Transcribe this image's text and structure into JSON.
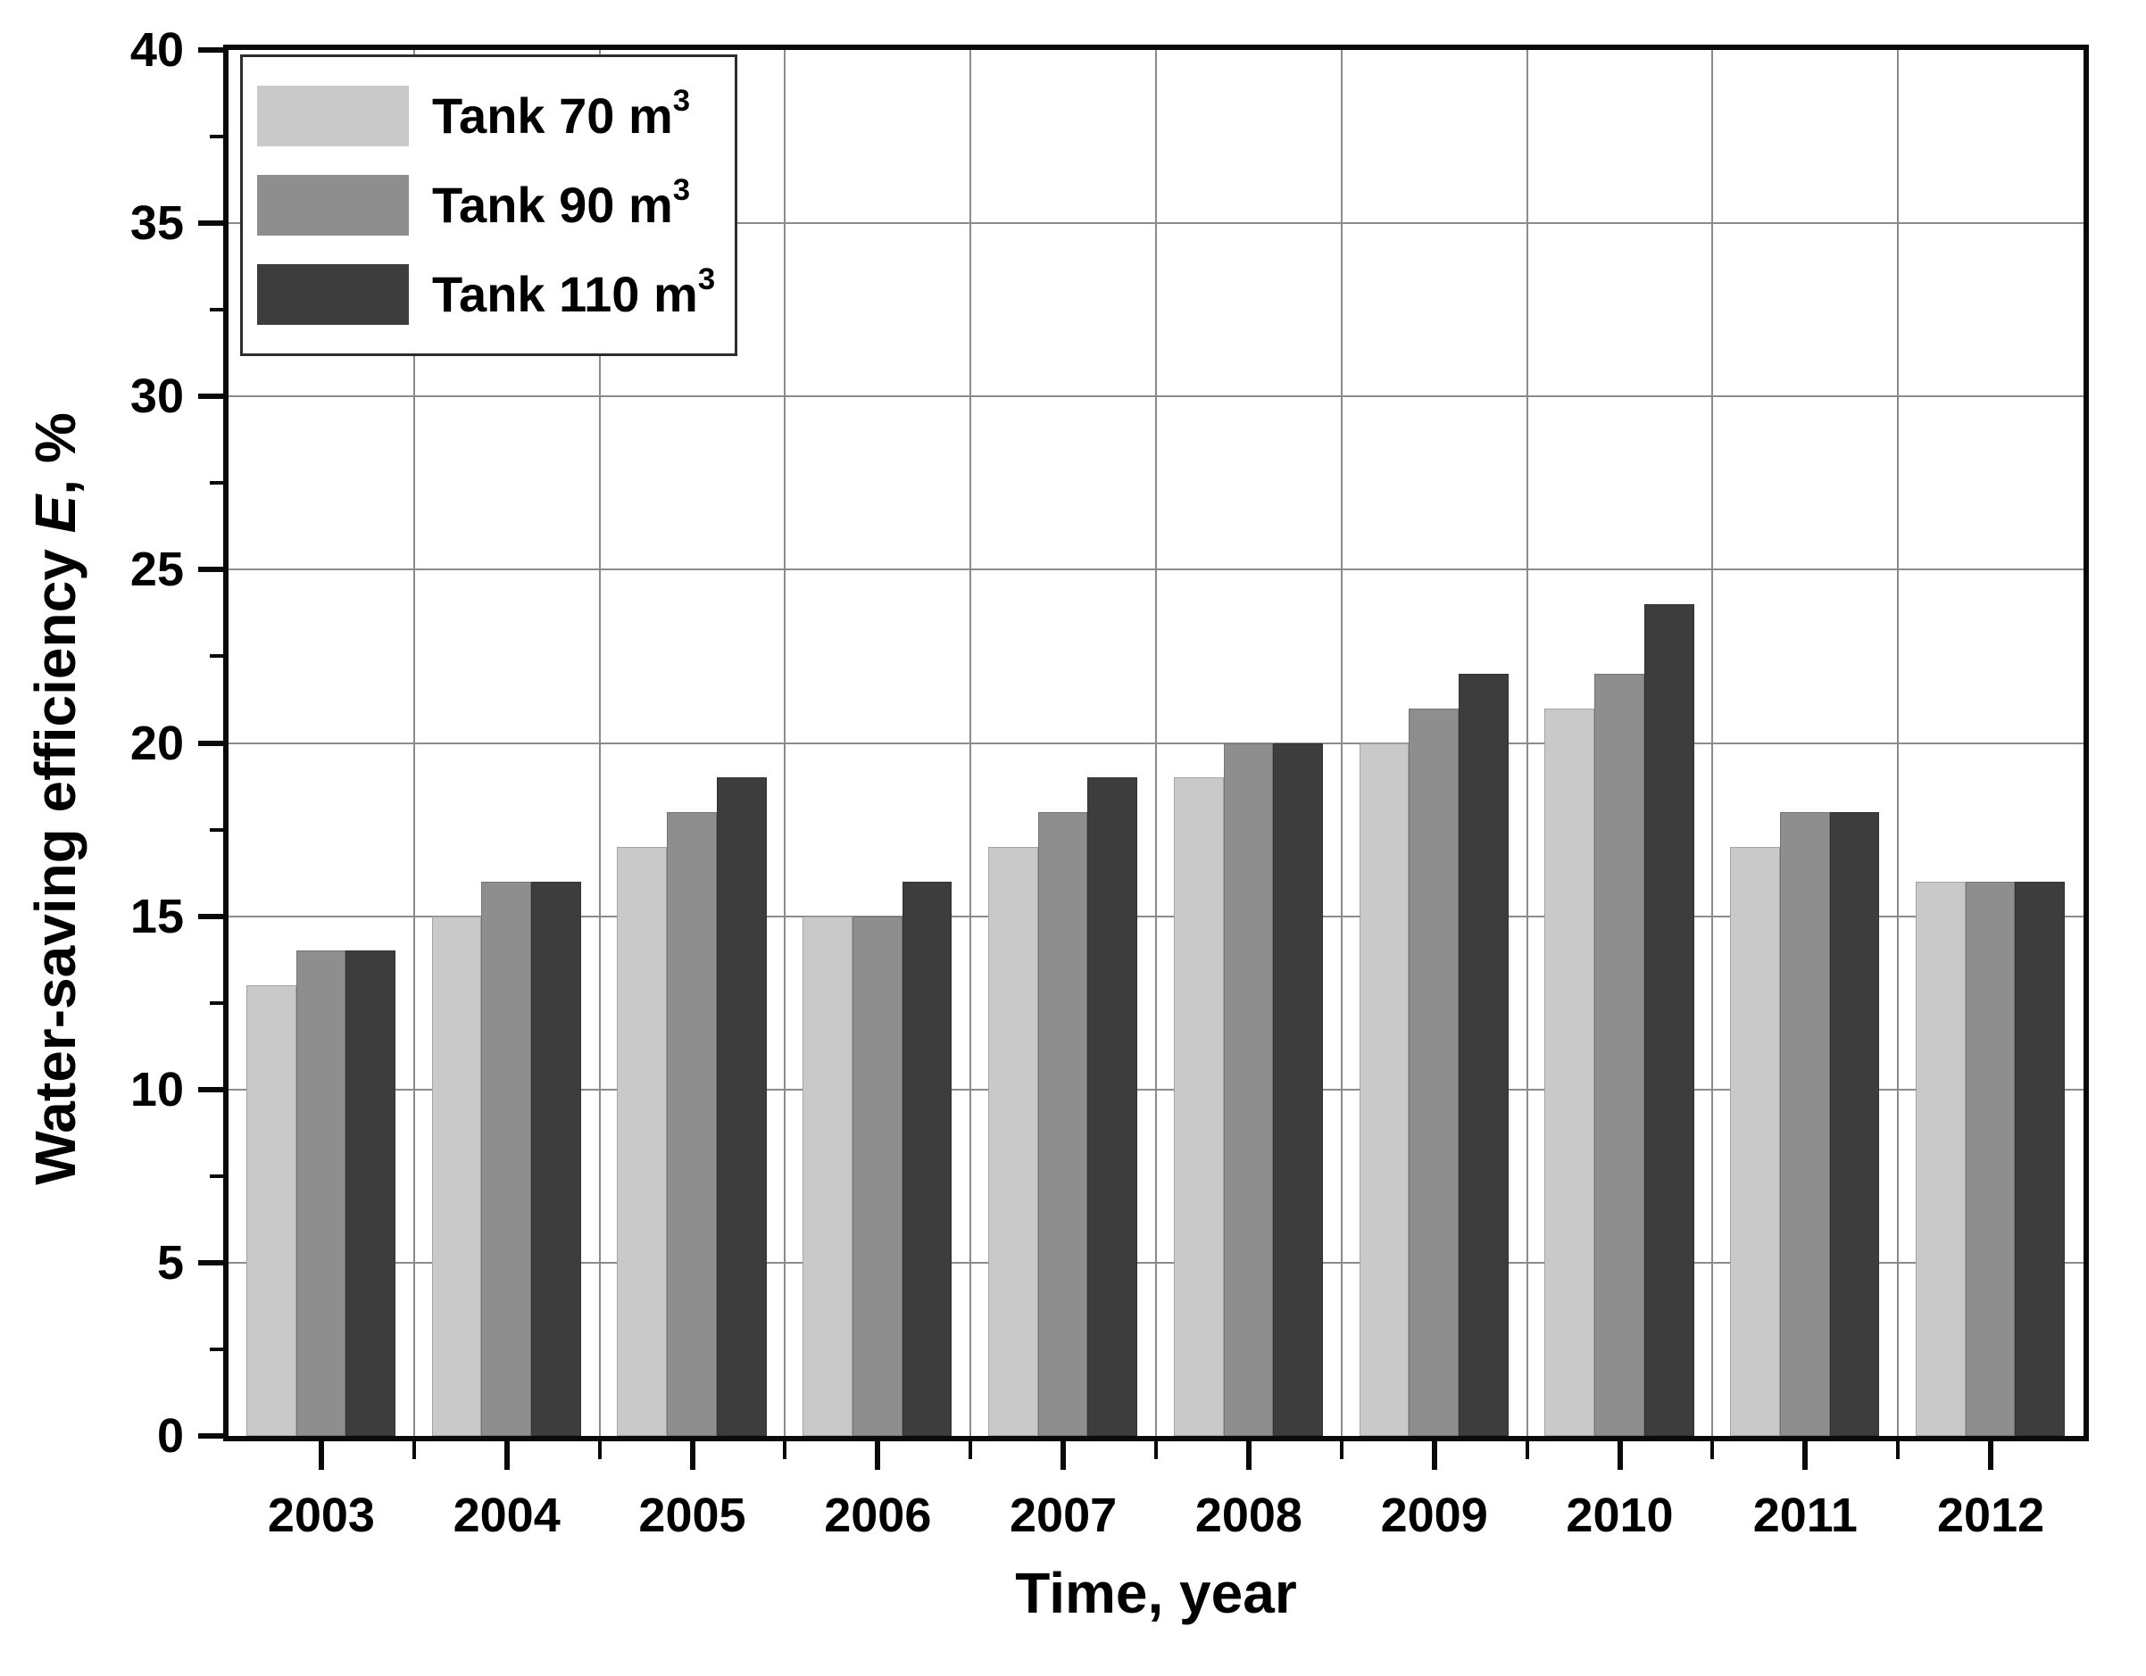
{
  "figure": {
    "background": "#ffffff"
  },
  "axes": {
    "y": {
      "title_prefix": "Water-saving efficiency ",
      "title_italic": "E",
      "title_suffix": ", %",
      "min": 0,
      "max": 40,
      "major_ticks": [
        0,
        5,
        10,
        15,
        20,
        25,
        30,
        35,
        40
      ],
      "minor_ticks": [
        2.5,
        7.5,
        12.5,
        17.5,
        22.5,
        27.5,
        32.5,
        37.5
      ]
    },
    "x": {
      "title": "Time, year"
    }
  },
  "legend": {
    "items": [
      {
        "label_base": "Tank 70 m",
        "sup": "3",
        "color": "#c9c9c9"
      },
      {
        "label_base": "Tank 90 m",
        "sup": "3",
        "color": "#8e8e8e"
      },
      {
        "label_base": "Tank 110 m",
        "sup": "3",
        "color": "#3d3d3d"
      }
    ]
  },
  "chart_data": {
    "type": "bar",
    "title": "",
    "categories": [
      "2003",
      "2004",
      "2005",
      "2006",
      "2007",
      "2008",
      "2009",
      "2010",
      "2011",
      "2012"
    ],
    "series": [
      {
        "name": "Tank 70 m³",
        "color": "#c9c9c9",
        "values": [
          13,
          15,
          17,
          15,
          17,
          19,
          20,
          21,
          17,
          16
        ]
      },
      {
        "name": "Tank 90 m³",
        "color": "#8e8e8e",
        "values": [
          14,
          16,
          18,
          15,
          18,
          20,
          21,
          22,
          18,
          16
        ]
      },
      {
        "name": "Tank 110 m³",
        "color": "#3d3d3d",
        "values": [
          14,
          16,
          19,
          16,
          19,
          20,
          22,
          24,
          18,
          16
        ]
      }
    ],
    "xlabel": "Time, year",
    "ylabel": "Water-saving efficiency E, %",
    "ylim": [
      0,
      40
    ],
    "grid": true,
    "legend_position": "top-left",
    "gridlines_horizontal": [
      5,
      10,
      15,
      20,
      25,
      30,
      35
    ],
    "gridlines_vertical": "between-year-groups"
  }
}
